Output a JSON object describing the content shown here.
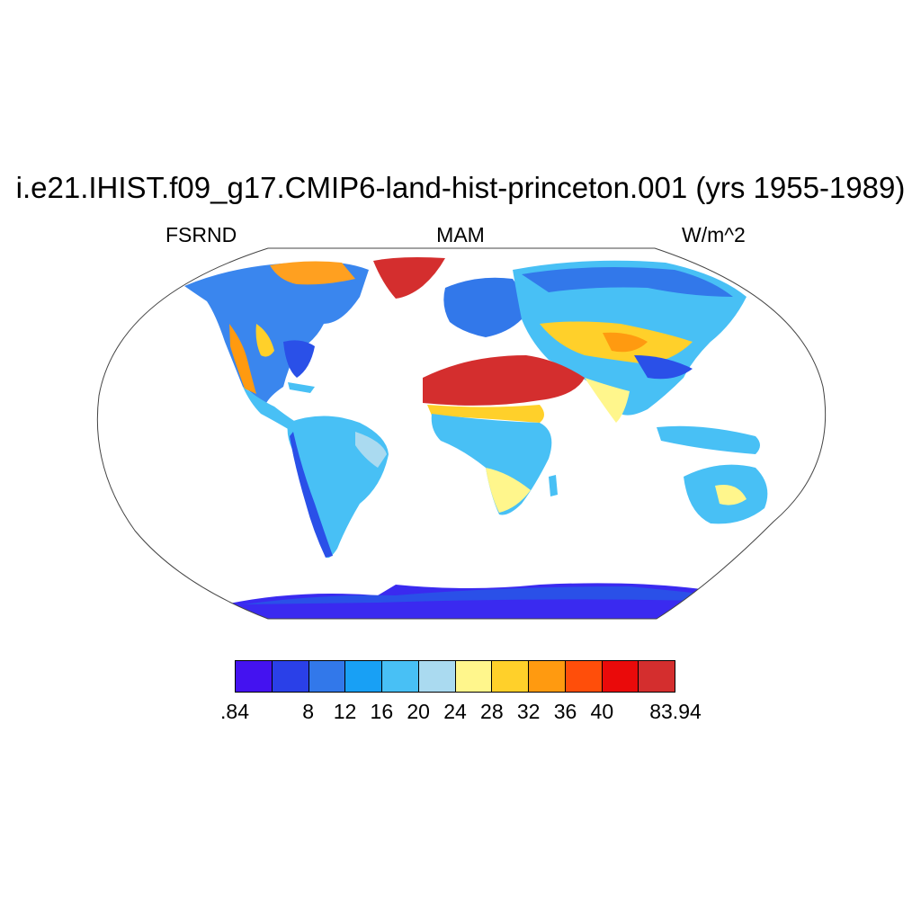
{
  "title": "i.e21.IHIST.f09_g17.CMIP6-land-hist-princeton.001 (yrs 1955-1989)",
  "left_label": "FSRND",
  "center_label": "MAM",
  "right_label": "W/m^2",
  "colorbar": {
    "colors": [
      "#4412f0",
      "#2a40e8",
      "#3278ea",
      "#18a0f5",
      "#48c0f5",
      "#aadaf0",
      "#fff68c",
      "#ffd02a",
      "#ff9a10",
      "#ff4e0a",
      "#ea0a0a",
      "#d42e2e"
    ],
    "tick_labels": [
      ".84",
      "8",
      "12",
      "16",
      "20",
      "24",
      "28",
      "32",
      "36",
      "40",
      "83.94"
    ]
  },
  "colors": {
    "coast": "#222222",
    "map_border": "#444444"
  }
}
